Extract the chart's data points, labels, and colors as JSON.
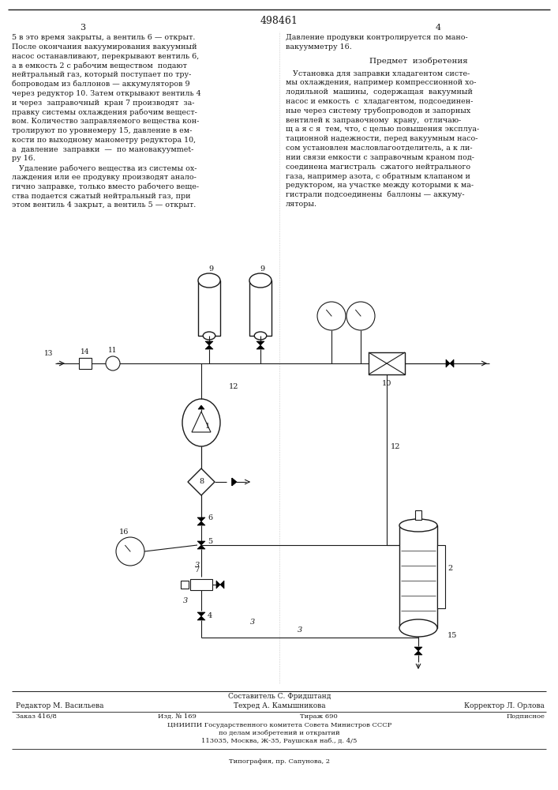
{
  "title": "498461",
  "bg_color": "#ffffff",
  "text_color": "#1a1a1a",
  "line_color": "#1a1a1a",
  "left_text_lines": [
    "5 в это время закрыты, а вентиль 6 — открыт.",
    "После окончания вакуумирования вакуумный",
    "насос останавливают, перекрывают вентиль 6,",
    "а в емкость 2 с рабочим веществом  подают",
    "нейтральный газ, который поступает по тру-",
    "бопроводам из баллонов — аккумуляторов 9",
    "через редуктор 10. Затем открывают вентиль 4",
    "и через  заправочный  кран 7 производят  за-",
    "правку системы охлаждения рабочим вещест-",
    "вом. Количество заправляемого вещества кон-",
    "тролируют по уровнемеру 15, давление в ем-",
    "кости по выходному манометру редуктора 10,",
    "а  давление  заправки  —  по мановакуумmet-",
    "ру 16.",
    "   Удаление рабочего вещества из системы ох-",
    "лаждения или ее продувку производят анало-",
    "гично заправке, только вместо рабочего веще-",
    "ства подается сжатый нейтральный газ, при",
    "этом вентиль 4 закрыт, а вентиль 5 — открыт."
  ],
  "right_text_top_lines": [
    "Давление продувки контролируется по мано-",
    "вакуумметру 16."
  ],
  "predmet_title": "Предмет  изобретения",
  "right_text_body_lines": [
    "   Установка для заправки хладагентом систе-",
    "мы охлаждения, например компрессионной хо-",
    "лодильной  машины,  содержащая  вакуумный",
    "насос и емкость  с  хладагентом, подсоединен-",
    "ные через систему трубопроводов и запорных",
    "вентилей к заправочному  крану,  отличаю-",
    "щ а я с я  тем, что, с целью повышения эксплуа-",
    "тационной надежности, перед вакуумным насо-",
    "сом установлен масловлагоотделитель, а к ли-",
    "нии связи емкости с заправочным краном под-",
    "соединена магистраль  сжатого нейтрального",
    "газа, например азота, с обратным клапаном и",
    "редуктором, на участке между которыми к ма-",
    "гистрали подсоединены  баллоны — аккуму-",
    "ляторы."
  ],
  "footer_composer": "Составитель С. Фридштанд",
  "footer_editor": "Редактор М. Васильева",
  "footer_techred": "Техред А. Камышникова",
  "footer_corrector": "Корректор Л. Орлова",
  "footer_order": "Заказ 416/8",
  "footer_izd": "Изд. № 169",
  "footer_tirazh": "Тираж 690",
  "footer_podp": "Подписное",
  "footer_org": "ЦНИИПИ Государственного комитета Совета Министров СССР",
  "footer_dept": "по делам изобретений и открытий",
  "footer_addr": "113035, Москва, Ж-35, Раушская наб., д. 4/5",
  "footer_typ": "Типография, пр. Сапунова, 2"
}
